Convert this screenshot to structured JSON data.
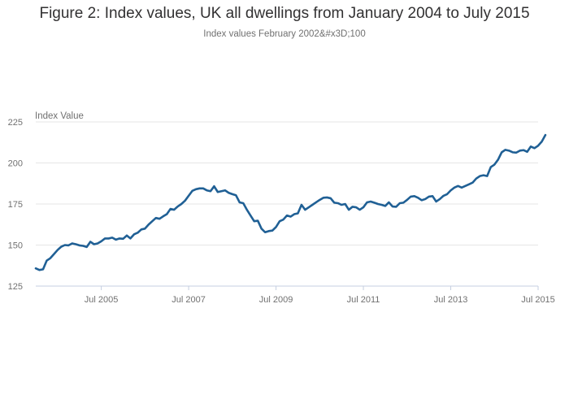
{
  "title": "Figure 2: Index values, UK all dwellings from January 2004 to July 2015",
  "subtitle": "Index values February 2002&#x3D;100",
  "chart_data": {
    "type": "line",
    "ylabel": "Index Value",
    "ylim": [
      125,
      225
    ],
    "yticks": [
      125,
      150,
      175,
      200,
      225
    ],
    "xlim": [
      "2004-01",
      "2015-07"
    ],
    "xtick_labels": [
      "Jul 2005",
      "Jul 2007",
      "Jul 2009",
      "Jul 2011",
      "Jul 2013",
      "Jul 2015"
    ],
    "xtick_dates": [
      "2005-07",
      "2007-07",
      "2009-07",
      "2011-07",
      "2013-07",
      "2015-07"
    ],
    "grid": true,
    "line_color": "#206095",
    "series": [
      {
        "start": "2004-01",
        "values": [
          135.8,
          134.8,
          135.2,
          140.5,
          142.0,
          144.5,
          147.0,
          149.0,
          150.0,
          149.8,
          151.0,
          150.5,
          149.8,
          149.5,
          148.8,
          152.0,
          150.5,
          151.0,
          152.3,
          154.0,
          154.0,
          154.5,
          153.3,
          154.0,
          153.8,
          155.8,
          154.0,
          156.5,
          157.5,
          159.5,
          160.0,
          162.5,
          164.5,
          166.5,
          166.0,
          167.5,
          168.8,
          172.0,
          171.5,
          173.5,
          175.0,
          177.0,
          180.0,
          183.0,
          184.0,
          184.5,
          184.5,
          183.3,
          182.8,
          185.8,
          182.3,
          182.8,
          183.3,
          181.8,
          181.0,
          180.3,
          176.0,
          175.5,
          171.5,
          168.0,
          164.5,
          164.8,
          160.0,
          157.8,
          158.5,
          158.8,
          161.0,
          164.5,
          165.5,
          168.0,
          167.3,
          168.8,
          169.3,
          174.5,
          171.5,
          173.0,
          174.5,
          176.0,
          177.5,
          178.8,
          179.0,
          178.5,
          175.8,
          175.5,
          174.5,
          175.0,
          171.5,
          173.3,
          173.0,
          171.5,
          173.0,
          176.0,
          176.5,
          175.8,
          175.0,
          174.5,
          173.8,
          176.0,
          173.5,
          173.3,
          175.5,
          175.8,
          177.5,
          179.5,
          179.8,
          178.8,
          177.3,
          178.0,
          179.5,
          179.8,
          176.5,
          178.0,
          180.0,
          181.0,
          183.3,
          185.0,
          186.0,
          185.0,
          186.0,
          187.0,
          188.0,
          190.5,
          192.0,
          192.5,
          192.0,
          197.5,
          199.0,
          202.0,
          206.5,
          208.0,
          207.5,
          206.5,
          206.3,
          207.5,
          207.8,
          206.8,
          210.0,
          209.0,
          210.5,
          213.0,
          217.0
        ]
      }
    ]
  }
}
